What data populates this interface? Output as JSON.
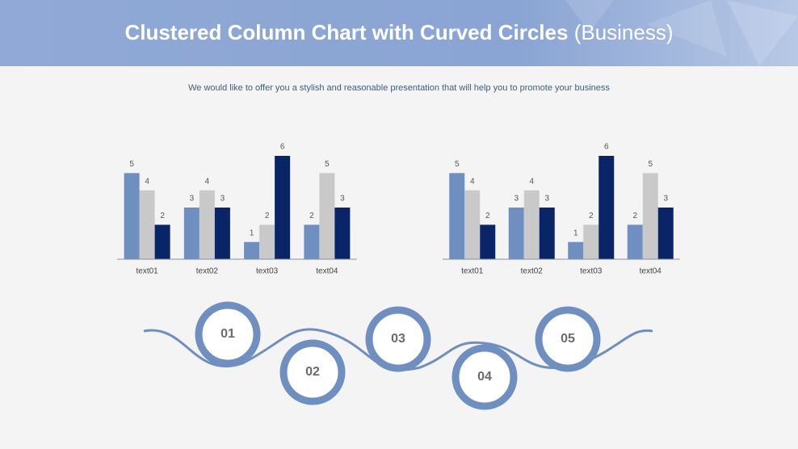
{
  "header": {
    "title": "Clustered Column Chart with Curved Circles",
    "title_suffix": "(Business)",
    "subtitle": "We would like to offer you a stylish and reasonable presentation that will help you to promote your business"
  },
  "chart_data": [
    {
      "type": "bar",
      "categories": [
        "text01",
        "text02",
        "text03",
        "text04"
      ],
      "ylim": [
        0,
        6
      ],
      "series": [
        {
          "color": "#6f8fc0",
          "values": [
            5,
            3,
            1,
            2
          ]
        },
        {
          "color": "#c9c9c9",
          "values": [
            4,
            4,
            2,
            5
          ]
        },
        {
          "color": "#0a2468",
          "values": [
            2,
            3,
            6,
            3
          ]
        }
      ]
    },
    {
      "type": "bar",
      "categories": [
        "text01",
        "text02",
        "text03",
        "text04"
      ],
      "ylim": [
        0,
        6
      ],
      "series": [
        {
          "color": "#6f8fc0",
          "values": [
            5,
            3,
            1,
            2
          ]
        },
        {
          "color": "#c9c9c9",
          "values": [
            4,
            4,
            2,
            5
          ]
        },
        {
          "color": "#0a2468",
          "values": [
            2,
            3,
            6,
            3
          ]
        }
      ]
    }
  ],
  "steps": [
    "01",
    "02",
    "03",
    "04",
    "05"
  ]
}
